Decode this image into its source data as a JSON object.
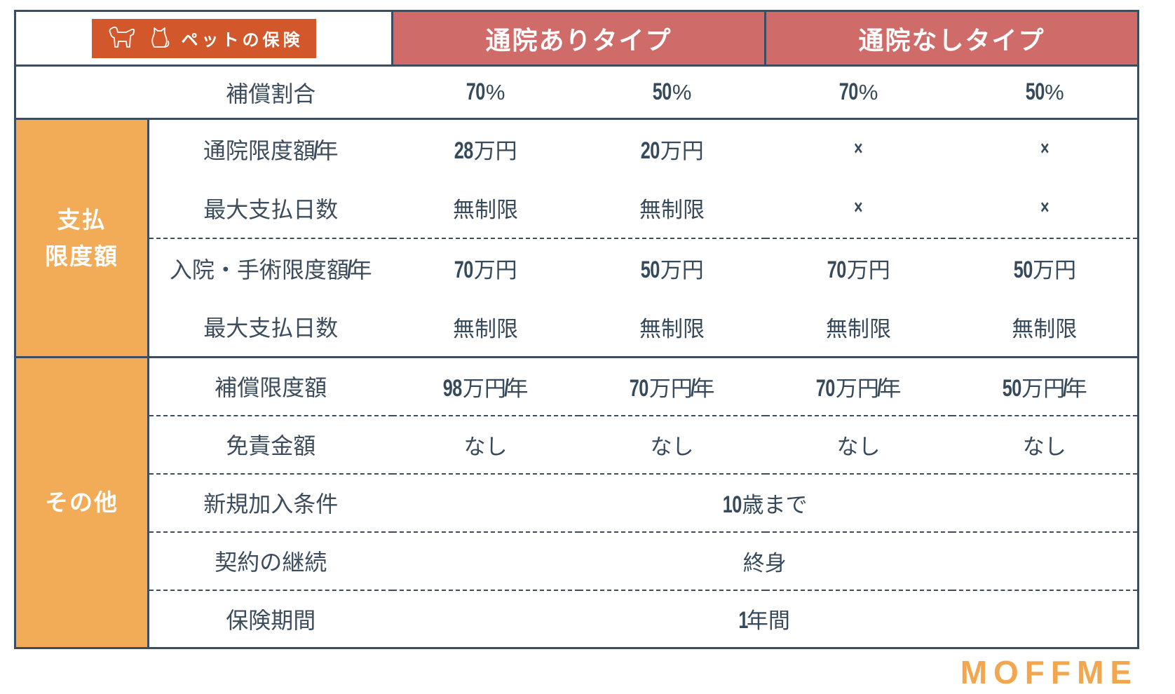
{
  "brand": {
    "badge_label": "ペットの保険"
  },
  "header": {
    "group1": "通院ありタイプ",
    "group2": "通院なしタイプ"
  },
  "ratio_row": {
    "label": "補償割合",
    "values": [
      "70%",
      "50%",
      "70%",
      "50%"
    ]
  },
  "sections": [
    {
      "title": "支払\n限度額",
      "rows": [
        {
          "label": "通院限度額/年",
          "values": [
            "28万円",
            "20万円",
            "×",
            "×"
          ]
        },
        {
          "label": "最大支払日数",
          "values": [
            "無制限",
            "無制限",
            "×",
            "×"
          ]
        },
        {
          "label": "入院・手術限度額/年",
          "values": [
            "70万円",
            "50万円",
            "70万円",
            "50万円"
          ]
        },
        {
          "label": "最大支払日数",
          "values": [
            "無制限",
            "無制限",
            "無制限",
            "無制限"
          ]
        }
      ]
    },
    {
      "title": "その他",
      "rows": [
        {
          "label": "補償限度額",
          "values": [
            "98万円/年",
            "70万円/年",
            "70万円/年",
            "50万円/年"
          ]
        },
        {
          "label": "免責金額",
          "values": [
            "なし",
            "なし",
            "なし",
            "なし"
          ]
        },
        {
          "label": "新規加入条件",
          "span_value": "10歳まで"
        },
        {
          "label": "契約の継続",
          "span_value": "終身"
        },
        {
          "label": "保険期間",
          "span_value": "1年間"
        }
      ]
    }
  ],
  "footer": {
    "logo": "MOFFME"
  },
  "colors": {
    "header_salmon": "#cf6c69",
    "section_orange": "#f2ac58",
    "badge_orange_red": "#d2582c",
    "text_border_slate": "#3d4d5d",
    "logo_orange": "#f2a74e"
  }
}
